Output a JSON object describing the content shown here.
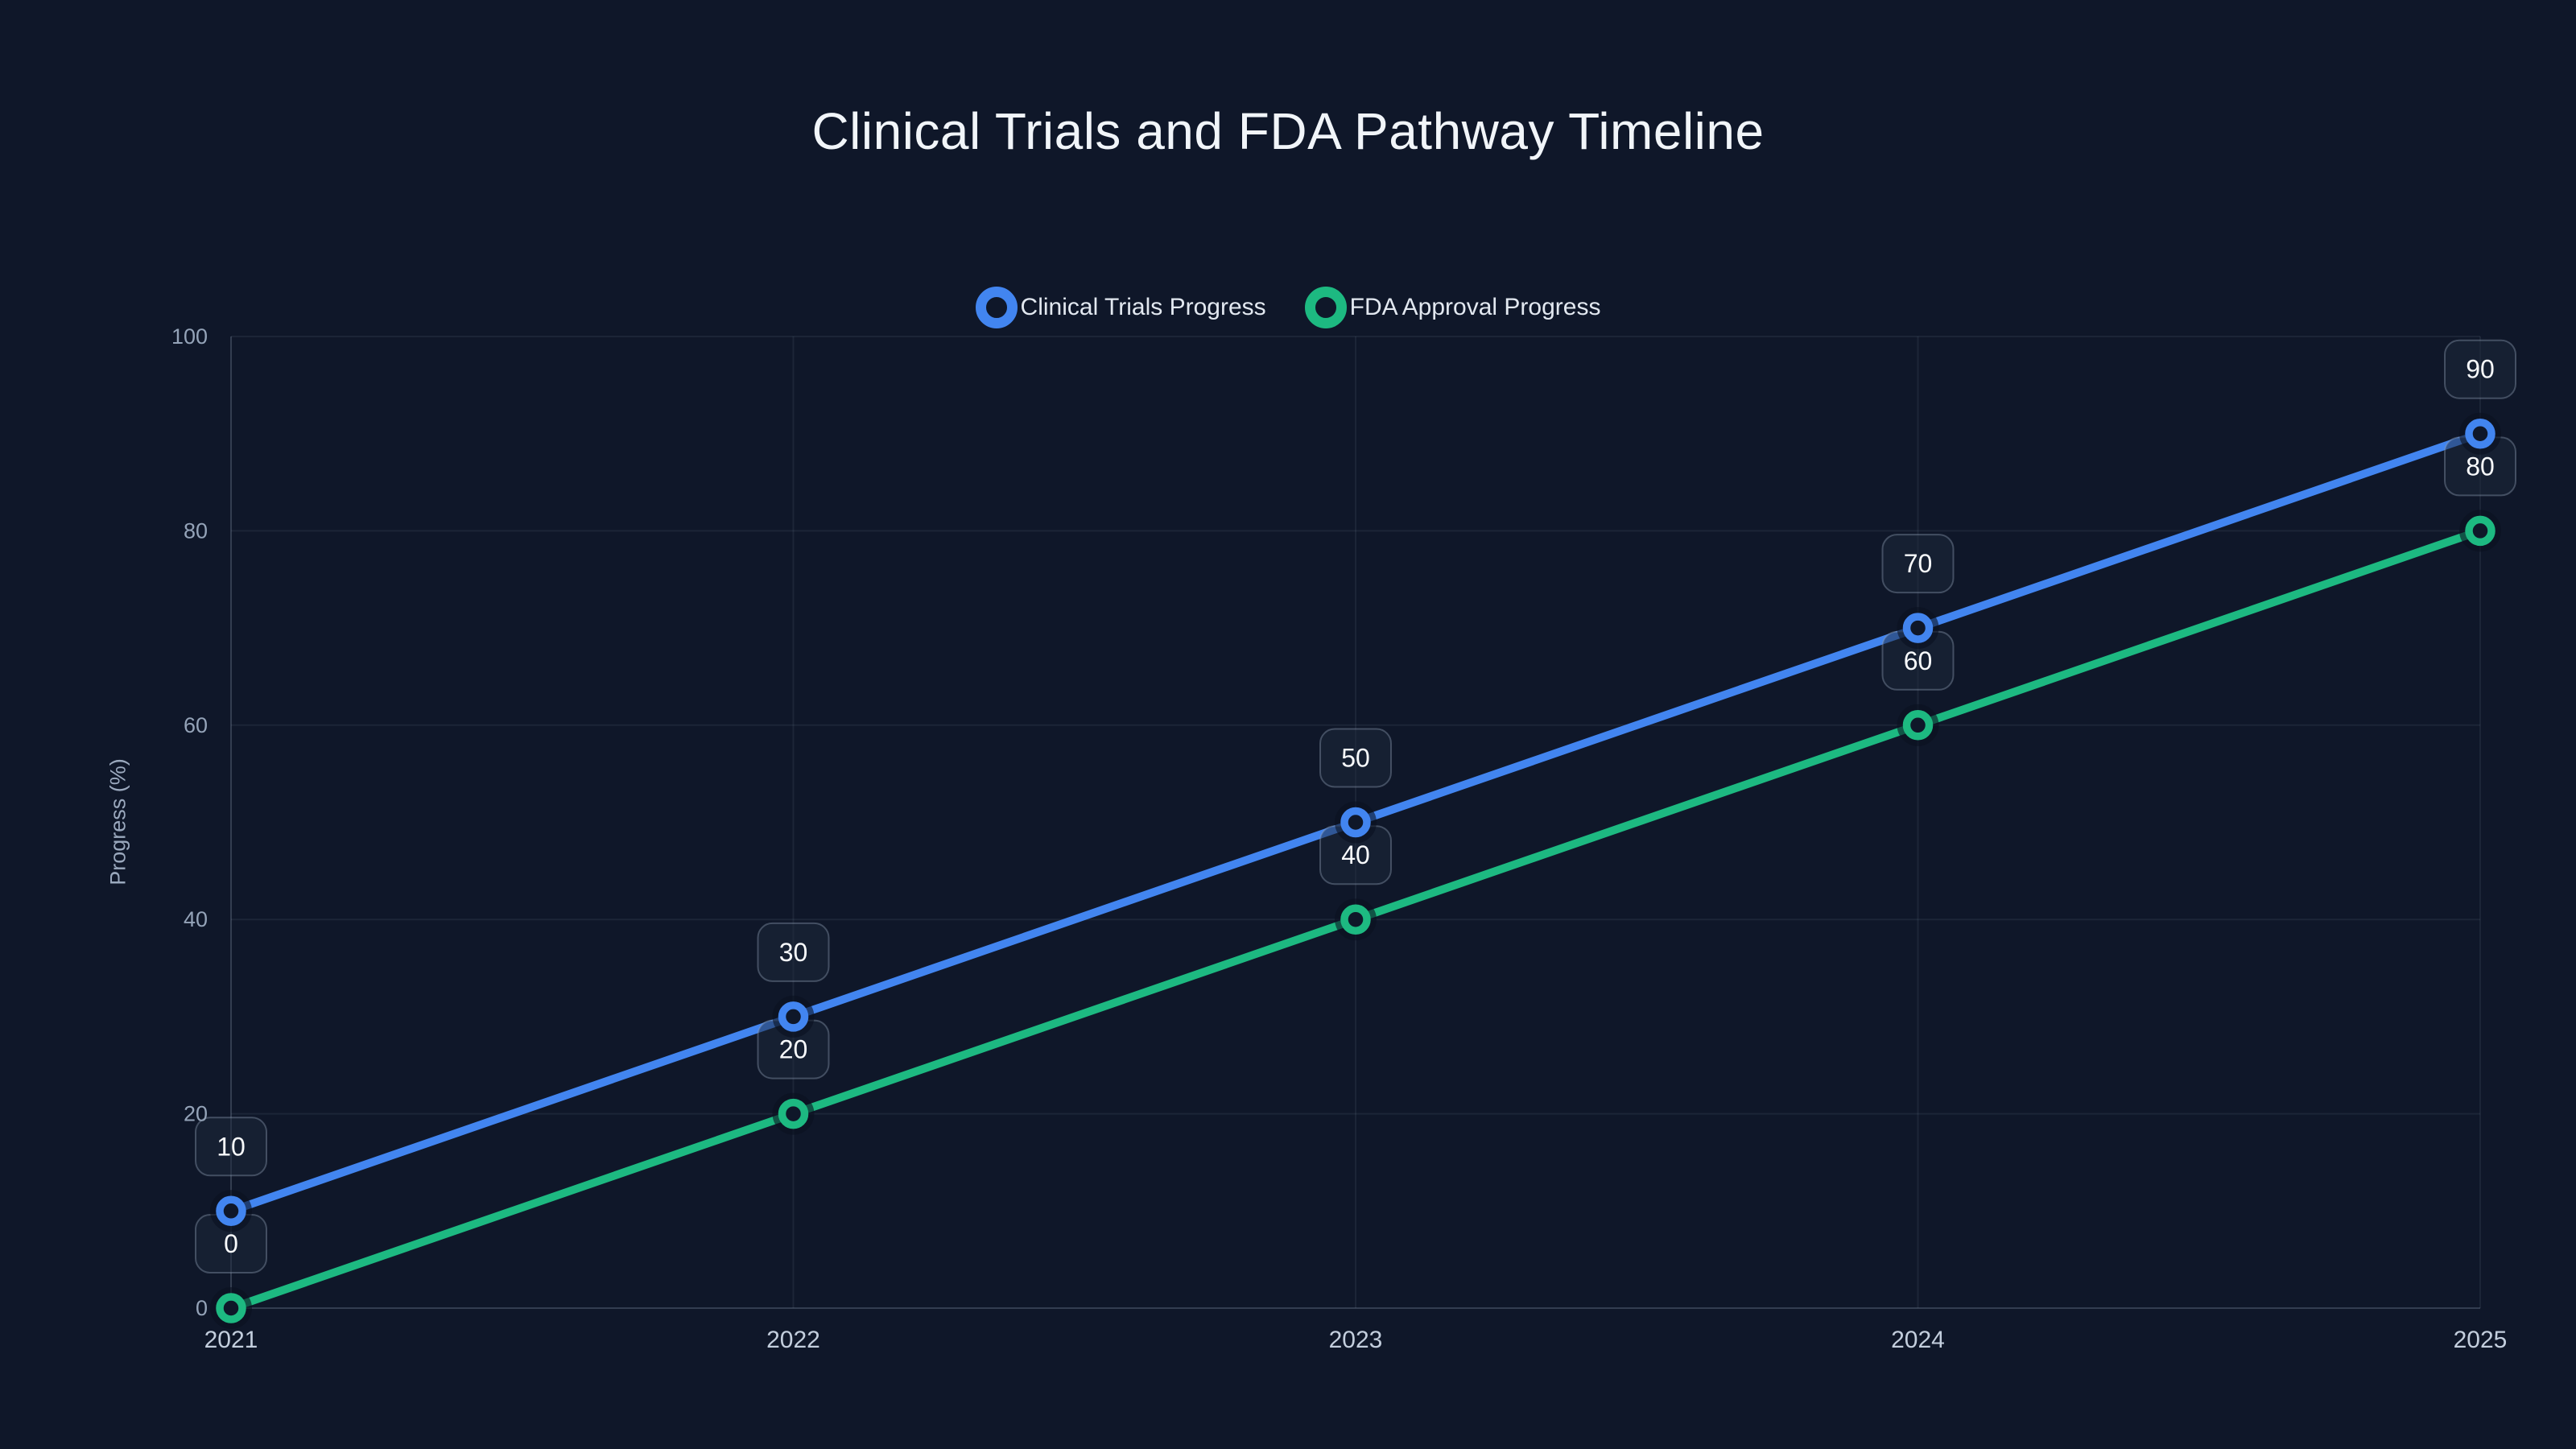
{
  "chart_data": {
    "type": "line",
    "title": "Clinical Trials and FDA Pathway Timeline",
    "x": [
      "2021",
      "2022",
      "2023",
      "2024",
      "2025"
    ],
    "xlabel": "",
    "ylabel": "Progress (%)",
    "ylim": [
      0,
      100
    ],
    "y_ticks": [
      0,
      20,
      40,
      60,
      80,
      100
    ],
    "grid": true,
    "legend_position": "top-center",
    "point_labels_visible": true,
    "series": [
      {
        "name": "Clinical Trials Progress",
        "color": "#4285f0",
        "values": [
          10,
          30,
          50,
          70,
          90
        ]
      },
      {
        "name": "FDA Approval Progress",
        "color": "#1db981",
        "values": [
          0,
          20,
          40,
          60,
          80
        ]
      }
    ]
  },
  "colors": {
    "background": "#0f1729",
    "title_text": "#f1f5f9",
    "legend_text": "#e2e8f0",
    "y_tick_text": "#94a3b8",
    "x_tick_text": "#c3cedd",
    "axis_title_text": "#9aa8bd",
    "grid_line": "rgba(148,163,184,0.10)",
    "axis_line": "rgba(148,163,184,0.28)",
    "point_label_bg": "rgba(30,41,59,0.50)",
    "point_label_border": "rgba(148,163,184,0.38)",
    "point_label_text": "#f8fafc",
    "marker_fill": "#0f1729",
    "marker_halo": "rgba(10,17,31,0.60)"
  }
}
